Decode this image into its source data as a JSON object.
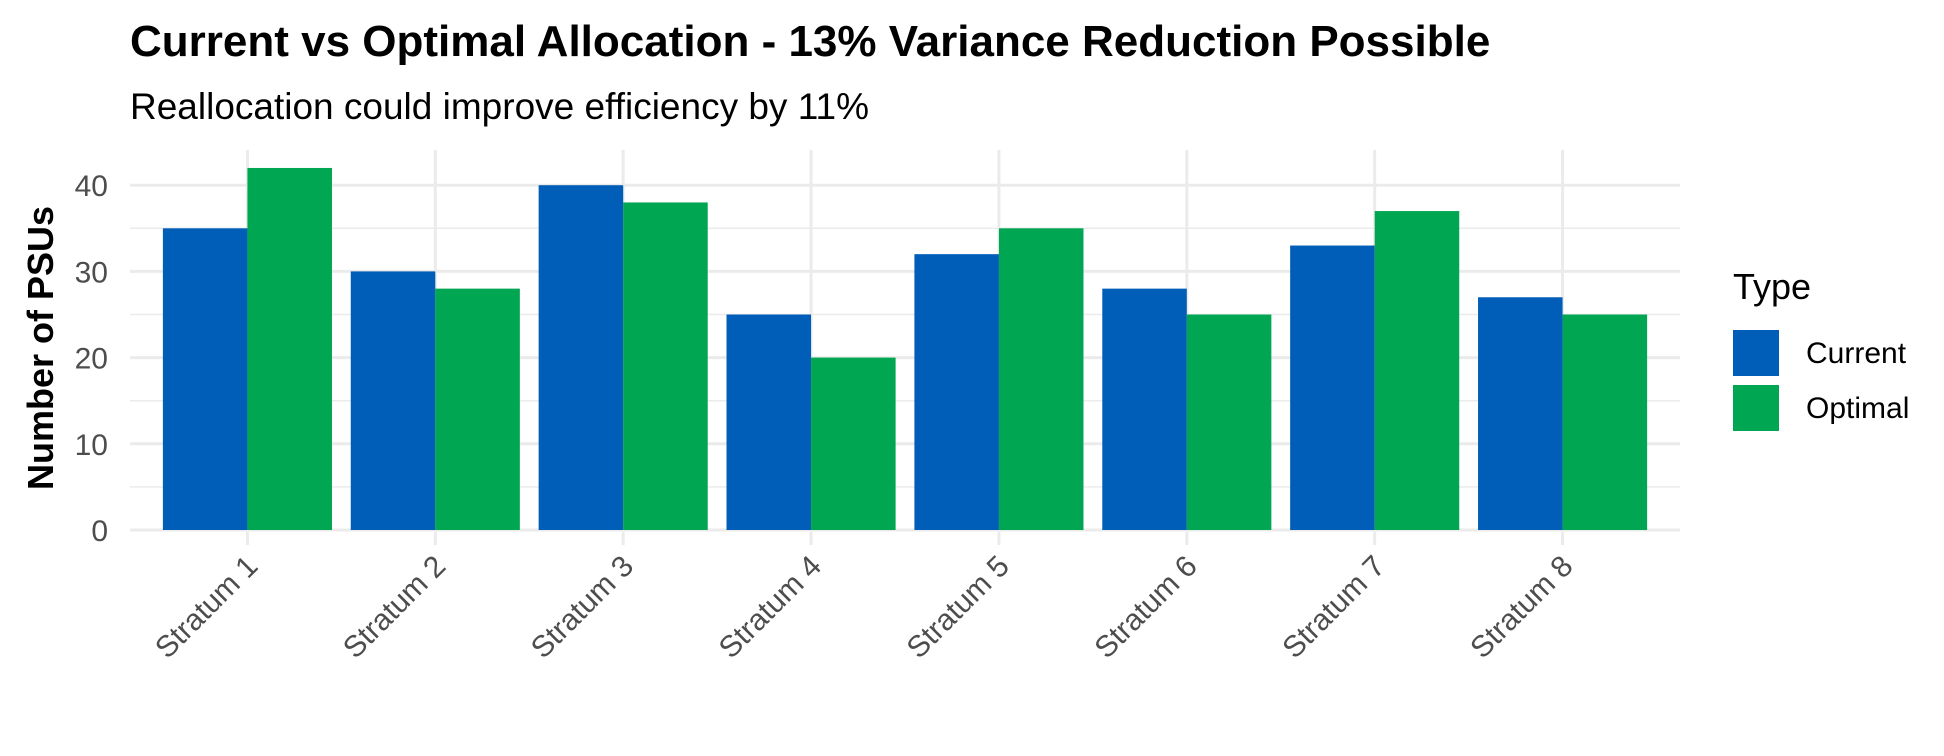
{
  "chart_data": {
    "type": "bar",
    "title": "Current vs Optimal Allocation - 13% Variance Reduction Possible",
    "subtitle": "Reallocation could improve efficiency by 11%",
    "xlabel": "",
    "ylabel": "Number of PSUs",
    "categories": [
      "Stratum 1",
      "Stratum 2",
      "Stratum 3",
      "Stratum 4",
      "Stratum 5",
      "Stratum 6",
      "Stratum 7",
      "Stratum 8"
    ],
    "series": [
      {
        "name": "Current",
        "color": "#005EB8",
        "values": [
          35,
          30,
          40,
          25,
          32,
          28,
          33,
          27
        ]
      },
      {
        "name": "Optimal",
        "color": "#00A651",
        "values": [
          42,
          28,
          38,
          20,
          35,
          25,
          37,
          25
        ]
      }
    ],
    "ylim": [
      0,
      43
    ],
    "yticks": [
      0,
      10,
      20,
      30,
      40
    ],
    "legend_title": "Type",
    "legend_position": "right",
    "grid": true
  }
}
